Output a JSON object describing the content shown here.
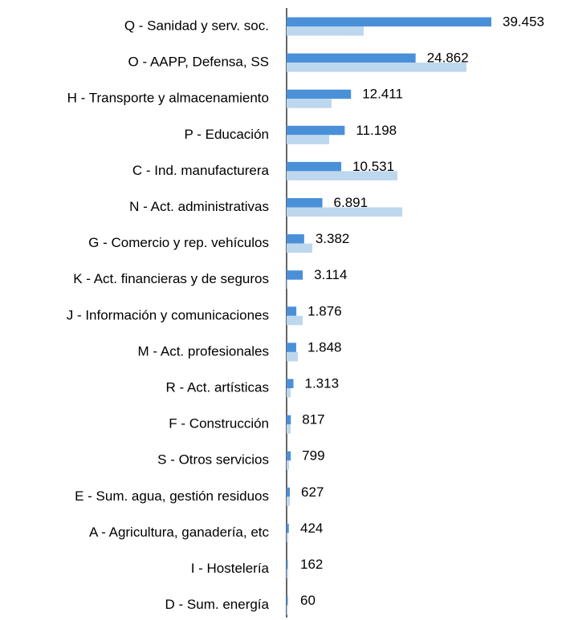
{
  "chart_data": {
    "type": "bar",
    "orientation": "horizontal",
    "categories": [
      "Q - Sanidad y serv. soc.",
      "O - AAPP, Defensa, SS",
      "H - Transporte y almacenamiento",
      "P - Educación",
      "C - Ind. manufacturera",
      "N - Act. administrativas",
      "G - Comercio y rep. vehículos",
      "K - Act. financieras y de seguros",
      "J - Información y comunicaciones",
      "M - Act. profesionales",
      "R - Act. artísticas",
      "F - Construcción",
      "S - Otros servicios",
      "E - Sum. agua, gestión residuos",
      "A - Agricultura, ganadería, etc",
      "I - Hostelería",
      "D - Sum. energía"
    ],
    "series": [
      {
        "color": "#4a90d9",
        "values": [
          39453,
          24862,
          12411,
          11198,
          10531,
          6891,
          3382,
          3114,
          1876,
          1848,
          1313,
          817,
          799,
          627,
          424,
          162,
          60
        ],
        "value_labels": [
          "39.453",
          "24.862",
          "12.411",
          "11.198",
          "10.531",
          "6.891",
          "3.382",
          "3.114",
          "1.876",
          "1.848",
          "1.313",
          "817",
          "799",
          "627",
          "424",
          "162",
          "60"
        ]
      },
      {
        "color": "#bdd7ee",
        "values": [
          14850,
          34650,
          8660,
          8200,
          21350,
          22280,
          4950,
          200,
          3090,
          2170,
          770,
          770,
          460,
          620,
          310,
          310,
          150
        ]
      }
    ]
  }
}
